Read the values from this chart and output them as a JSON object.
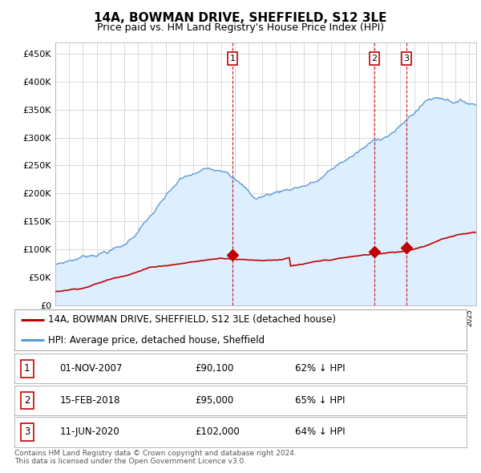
{
  "title": "14A, BOWMAN DRIVE, SHEFFIELD, S12 3LE",
  "subtitle": "Price paid vs. HM Land Registry's House Price Index (HPI)",
  "ylabel_ticks": [
    "£0",
    "£50K",
    "£100K",
    "£150K",
    "£200K",
    "£250K",
    "£300K",
    "£350K",
    "£400K",
    "£450K"
  ],
  "ytick_values": [
    0,
    50000,
    100000,
    150000,
    200000,
    250000,
    300000,
    350000,
    400000,
    450000
  ],
  "ylim": [
    0,
    470000
  ],
  "xlim_start": 1995.0,
  "xlim_end": 2025.5,
  "hpi_color": "#5b9bd5",
  "hpi_fill_color": "#ddeeff",
  "price_color": "#c00000",
  "vline_color": "#c00000",
  "background_color": "#ffffff",
  "grid_color": "#cccccc",
  "sale_dates": [
    2007.833,
    2018.125,
    2020.44
  ],
  "sale_prices": [
    90100,
    95000,
    102000
  ],
  "sale_labels": [
    "1",
    "2",
    "3"
  ],
  "legend_label_red": "14A, BOWMAN DRIVE, SHEFFIELD, S12 3LE (detached house)",
  "legend_label_blue": "HPI: Average price, detached house, Sheffield",
  "table_data": [
    [
      "1",
      "01-NOV-2007",
      "£90,100",
      "62% ↓ HPI"
    ],
    [
      "2",
      "15-FEB-2018",
      "£95,000",
      "65% ↓ HPI"
    ],
    [
      "3",
      "11-JUN-2020",
      "£102,000",
      "64% ↓ HPI"
    ]
  ],
  "footnote": "Contains HM Land Registry data © Crown copyright and database right 2024.\nThis data is licensed under the Open Government Licence v3.0.",
  "title_fontsize": 11,
  "subtitle_fontsize": 9,
  "tick_fontsize": 8,
  "legend_fontsize": 8.5,
  "table_fontsize": 8.5
}
